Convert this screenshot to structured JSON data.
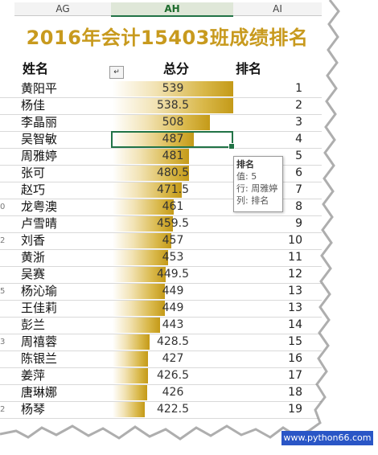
{
  "columns": [
    "AG",
    "AH",
    "AI"
  ],
  "title": "2016年会计15403班成绩排名",
  "headers": {
    "name": "姓名",
    "score": "总分",
    "rank": "排名",
    "filter_icon": "↵"
  },
  "max_score": 539,
  "rows": [
    {
      "rn": "",
      "name": "黄阳平",
      "score": "539",
      "rank": "1"
    },
    {
      "rn": "",
      "name": "杨佳",
      "score": "538.5",
      "rank": "2"
    },
    {
      "rn": "",
      "name": "李晶丽",
      "score": "508",
      "rank": "3"
    },
    {
      "rn": "",
      "name": "吴智敏",
      "score": "487",
      "rank": "4"
    },
    {
      "rn": "",
      "name": "周雅婷",
      "score": "481",
      "rank": "5"
    },
    {
      "rn": "",
      "name": "张可",
      "score": "480.5",
      "rank": "6"
    },
    {
      "rn": "",
      "name": "赵巧",
      "score": "471.5",
      "rank": "7"
    },
    {
      "rn": "0",
      "name": "龙粤澳",
      "score": "461",
      "rank": "8"
    },
    {
      "rn": "",
      "name": "卢雪晴",
      "score": "459.5",
      "rank": "9"
    },
    {
      "rn": "2",
      "name": "刘香",
      "score": "457",
      "rank": "10"
    },
    {
      "rn": "",
      "name": "黄浙",
      "score": "453",
      "rank": "11"
    },
    {
      "rn": "",
      "name": "吴赛",
      "score": "449.5",
      "rank": "12"
    },
    {
      "rn": "5",
      "name": "杨沁瑜",
      "score": "449",
      "rank": "13"
    },
    {
      "rn": "",
      "name": "王佳莉",
      "score": "449",
      "rank": "13"
    },
    {
      "rn": "",
      "name": "彭兰",
      "score": "443",
      "rank": "14"
    },
    {
      "rn": "3",
      "name": "周禧蓉",
      "score": "428.5",
      "rank": "15"
    },
    {
      "rn": "",
      "name": "陈银兰",
      "score": "427",
      "rank": "16"
    },
    {
      "rn": "",
      "name": "姜萍",
      "score": "426.5",
      "rank": "17"
    },
    {
      "rn": "",
      "name": "唐琳娜",
      "score": "426",
      "rank": "18"
    },
    {
      "rn": "2",
      "name": "杨琴",
      "score": "422.5",
      "rank": "19"
    }
  ],
  "tooltip": {
    "title": "排名",
    "value": "值: 5",
    "row": "行: 周雅婷",
    "col": "列: 排名"
  },
  "watermark": "www.python66.com"
}
